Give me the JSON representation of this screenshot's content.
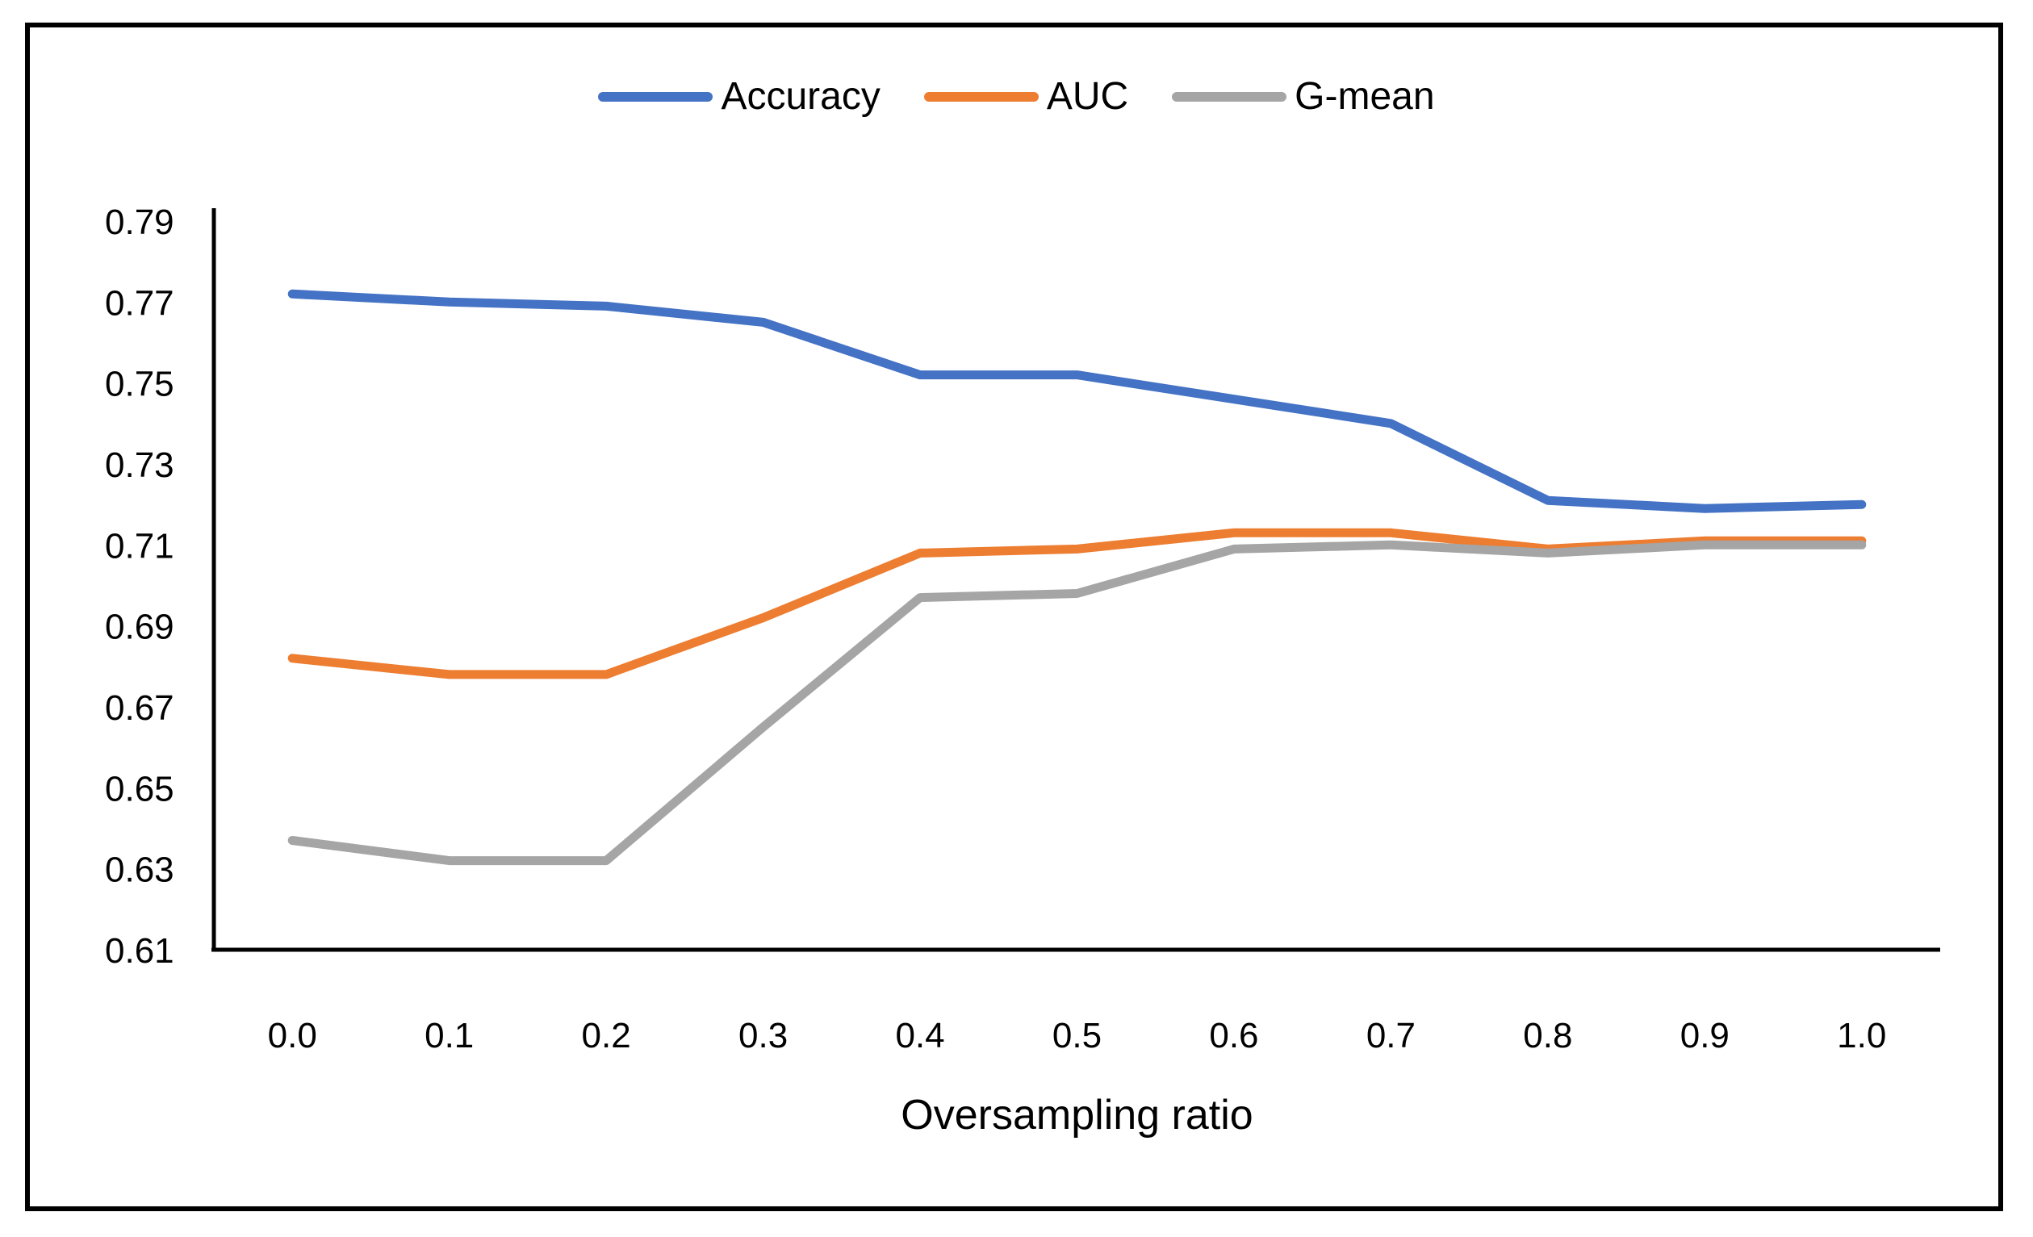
{
  "chart_data": {
    "type": "line",
    "x": [
      0.0,
      0.1,
      0.2,
      0.3,
      0.4,
      0.5,
      0.6,
      0.7,
      0.8,
      0.9,
      1.0
    ],
    "x_tick_labels": [
      "0.0",
      "0.1",
      "0.2",
      "0.3",
      "0.4",
      "0.5",
      "0.6",
      "0.7",
      "0.8",
      "0.9",
      "1.0"
    ],
    "y_tick_labels": [
      "0.61",
      "0.63",
      "0.65",
      "0.67",
      "0.69",
      "0.71",
      "0.73",
      "0.75",
      "0.77",
      "0.79"
    ],
    "series": [
      {
        "name": "Accuracy",
        "color": "#4472C4",
        "values": [
          0.772,
          0.77,
          0.769,
          0.765,
          0.752,
          0.752,
          0.746,
          0.74,
          0.721,
          0.719,
          0.72
        ]
      },
      {
        "name": "AUC",
        "color": "#ED7D31",
        "values": [
          0.682,
          0.678,
          0.678,
          0.692,
          0.708,
          0.709,
          0.713,
          0.713,
          0.709,
          0.711,
          0.711
        ]
      },
      {
        "name": "G-mean",
        "color": "#A5A5A5",
        "values": [
          0.637,
          0.632,
          0.632,
          0.665,
          0.697,
          0.698,
          0.709,
          0.71,
          0.708,
          0.71,
          0.71
        ]
      }
    ],
    "title": "",
    "xlabel": "Oversampling ratio",
    "ylabel": "",
    "ylim": [
      0.61,
      0.79
    ],
    "ytick_step": 0.02,
    "xlim_type": "categorical",
    "grid": false,
    "legend_position": "top",
    "axis_color": "#000000",
    "background_color": "#FFFFFF"
  }
}
